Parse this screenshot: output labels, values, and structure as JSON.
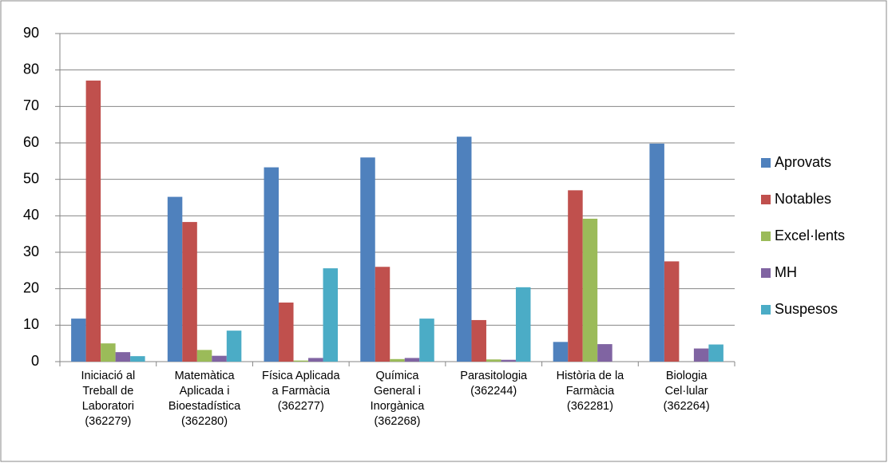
{
  "chart_data": {
    "type": "bar",
    "categories": [
      "Iniciació al Treball de Laboratori (362279)",
      "Matemàtica Aplicada i Bioestadística (362280)",
      "Física Aplicada a Farmàcia (362277)",
      "Química General i Inorgànica (362268)",
      "Parasitologia (362244)",
      "Història de la Farmàcia (362281)",
      "Biologia Cel·lular (362264)"
    ],
    "series": [
      {
        "name": "Aprovats",
        "color": "#4f81bd",
        "values": [
          11.8,
          45.2,
          53.3,
          56,
          61.7,
          5.4,
          59.8
        ]
      },
      {
        "name": "Notables",
        "color": "#c0504d",
        "values": [
          77.1,
          38.3,
          16.2,
          26,
          11.4,
          47,
          27.5
        ]
      },
      {
        "name": "Excel·lents",
        "color": "#9bbb59",
        "values": [
          5,
          3.2,
          0.3,
          0.7,
          0.6,
          39.2,
          0
        ]
      },
      {
        "name": "MH",
        "color": "#8064a2",
        "values": [
          2.6,
          1.6,
          1,
          1,
          0.5,
          4.8,
          3.6
        ]
      },
      {
        "name": "Suspesos",
        "color": "#4bacc6",
        "values": [
          1.5,
          8.5,
          25.6,
          11.8,
          20.4,
          0,
          4.7
        ]
      }
    ],
    "ylim": [
      0,
      90
    ],
    "yticks": [
      0,
      10,
      20,
      30,
      40,
      50,
      60,
      70,
      80,
      90
    ],
    "grid": true,
    "legend": "right"
  }
}
